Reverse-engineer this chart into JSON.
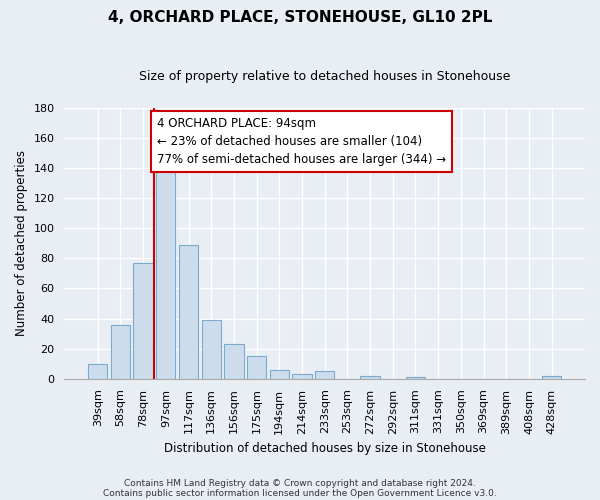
{
  "title": "4, ORCHARD PLACE, STONEHOUSE, GL10 2PL",
  "subtitle": "Size of property relative to detached houses in Stonehouse",
  "xlabel": "Distribution of detached houses by size in Stonehouse",
  "ylabel": "Number of detached properties",
  "bar_labels": [
    "39sqm",
    "58sqm",
    "78sqm",
    "97sqm",
    "117sqm",
    "136sqm",
    "156sqm",
    "175sqm",
    "194sqm",
    "214sqm",
    "233sqm",
    "253sqm",
    "272sqm",
    "292sqm",
    "311sqm",
    "331sqm",
    "350sqm",
    "369sqm",
    "389sqm",
    "408sqm",
    "428sqm"
  ],
  "bar_heights": [
    10,
    36,
    77,
    146,
    89,
    39,
    23,
    15,
    6,
    3,
    5,
    0,
    2,
    0,
    1,
    0,
    0,
    0,
    0,
    0,
    2
  ],
  "bar_color": "#ccdcec",
  "bar_edge_color": "#7aabcc",
  "vline_color": "#cc0000",
  "vline_index": 2.5,
  "ylim": [
    0,
    180
  ],
  "yticks": [
    0,
    20,
    40,
    60,
    80,
    100,
    120,
    140,
    160,
    180
  ],
  "annotation_title": "4 ORCHARD PLACE: 94sqm",
  "annotation_line1": "← 23% of detached houses are smaller (104)",
  "annotation_line2": "77% of semi-detached houses are larger (344) →",
  "annotation_box_facecolor": "#ffffff",
  "annotation_box_edgecolor": "#cc0000",
  "footer_line1": "Contains HM Land Registry data © Crown copyright and database right 2024.",
  "footer_line2": "Contains public sector information licensed under the Open Government Licence v3.0.",
  "background_color": "#e8eef4",
  "plot_background": "#e8eef4",
  "grid_color": "#ffffff",
  "title_fontsize": 11,
  "subtitle_fontsize": 9,
  "axis_label_fontsize": 8.5,
  "tick_fontsize": 8,
  "annotation_fontsize": 8.5
}
